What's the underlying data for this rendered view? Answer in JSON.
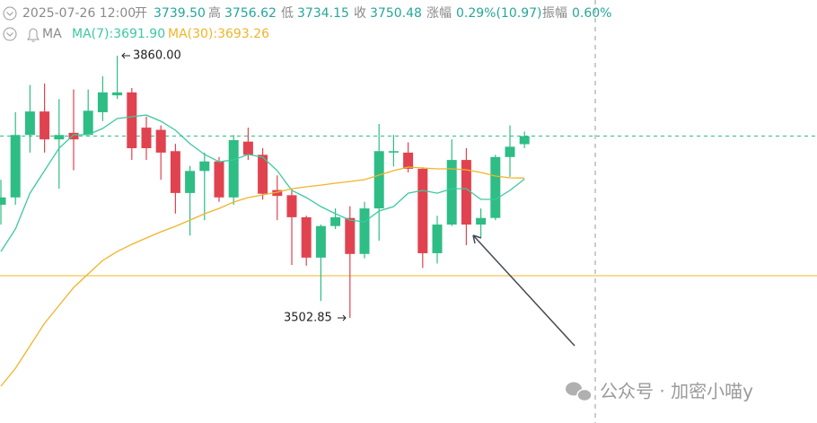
{
  "chart_data": {
    "type": "candlestick",
    "header": {
      "time": "2025-07-26 12:00",
      "open_label": "开",
      "open": "3739.50",
      "high_label": "高",
      "high": "3756.62",
      "low_label": "低",
      "low": "3734.15",
      "close_label": "收",
      "close": "3750.48",
      "change_label": "涨幅",
      "change": "0.29%(10.97)",
      "amplitude_label": "振幅",
      "amplitude": "0.60%"
    },
    "ma_title": "MA",
    "up_color": "#2ebd85",
    "down_color": "#e0434f",
    "open": [
      3657,
      3667,
      3752,
      3784,
      3746,
      3755,
      3752,
      3783,
      3806,
      3810,
      3762,
      3759,
      3730,
      3673,
      3703,
      3716,
      3667,
      3743,
      3725,
      3677,
      3670,
      3640,
      3585,
      3628,
      3639,
      3590,
      3652,
      3728,
      3728,
      3706,
      3591,
      3630,
      3718,
      3630,
      3639,
      3722,
      3739.5
    ],
    "high": [
      3691,
      3783,
      3820,
      3822,
      3801,
      3814,
      3814,
      3832,
      3860,
      3816,
      3777,
      3765,
      3740,
      3710,
      3728,
      3722,
      3752,
      3762,
      3734,
      3697,
      3679,
      3642,
      3630,
      3652,
      3655,
      3661,
      3767,
      3752,
      3742,
      3708,
      3642,
      3746,
      3734,
      3652,
      3725,
      3765,
      3756.62
    ],
    "low": [
      3630,
      3657,
      3728,
      3728,
      3679,
      3704,
      3752,
      3771,
      3801,
      3718,
      3718,
      3691,
      3645,
      3615,
      3636,
      3661,
      3657,
      3718,
      3664,
      3636,
      3575,
      3574,
      3526,
      3624,
      3502.85,
      3584,
      3608,
      3709,
      3701,
      3571,
      3577,
      3628,
      3602,
      3612,
      3636,
      3695,
      3734.15
    ],
    "close": [
      3667,
      3752,
      3784,
      3746,
      3752,
      3746,
      3785,
      3810,
      3810,
      3734,
      3734,
      3728,
      3673,
      3703,
      3716,
      3667,
      3745,
      3725,
      3672,
      3669,
      3640,
      3585,
      3628,
      3640,
      3590,
      3652,
      3730,
      3730,
      3706,
      3591,
      3630,
      3718,
      3630,
      3639,
      3722,
      3736,
      3750.48
    ],
    "ma": [
      {
        "label": "MA(7):3691.90",
        "color": "#3cc9a0",
        "values": [
          3593.3,
          3623.9,
          3672.8,
          3703.4,
          3734,
          3752.3,
          3752.3,
          3760.9,
          3774.4,
          3776.8,
          3779.2,
          3770.7,
          3758.5,
          3740.1,
          3725.4,
          3715.6,
          3718.1,
          3725.4,
          3721.8,
          3703.4,
          3676.5,
          3666.7,
          3654.5,
          3644.7,
          3636.1,
          3633.7,
          3648.4,
          3654.5,
          3672.8,
          3676.5,
          3672.8,
          3678.9,
          3678.9,
          3664.3,
          3664.3,
          3676.5,
          3691.9
        ]
      },
      {
        "label": "MA(30):3693.26",
        "color": "#f0b429",
        "values": [
          3409.9,
          3434.3,
          3464.9,
          3495.5,
          3519.9,
          3544.4,
          3562.8,
          3581.1,
          3593.3,
          3603.1,
          3611.7,
          3620.2,
          3627.6,
          3636.1,
          3644.7,
          3652,
          3660.6,
          3666.7,
          3670.4,
          3674.1,
          3678.9,
          3681.4,
          3683.8,
          3686.3,
          3688.7,
          3691.2,
          3697.3,
          3703.4,
          3708.3,
          3707.1,
          3705.9,
          3705.9,
          3704.6,
          3701,
          3696.1,
          3693.6,
          3693.26
        ]
      }
    ],
    "support_line": 3560.3,
    "support_color": "#f0b429",
    "max_label": "3860.00",
    "min_label": "3502.85",
    "ylim": [
      3359.8,
      3935.8
    ],
    "watermark": "公众号 · 加密小喵y"
  }
}
